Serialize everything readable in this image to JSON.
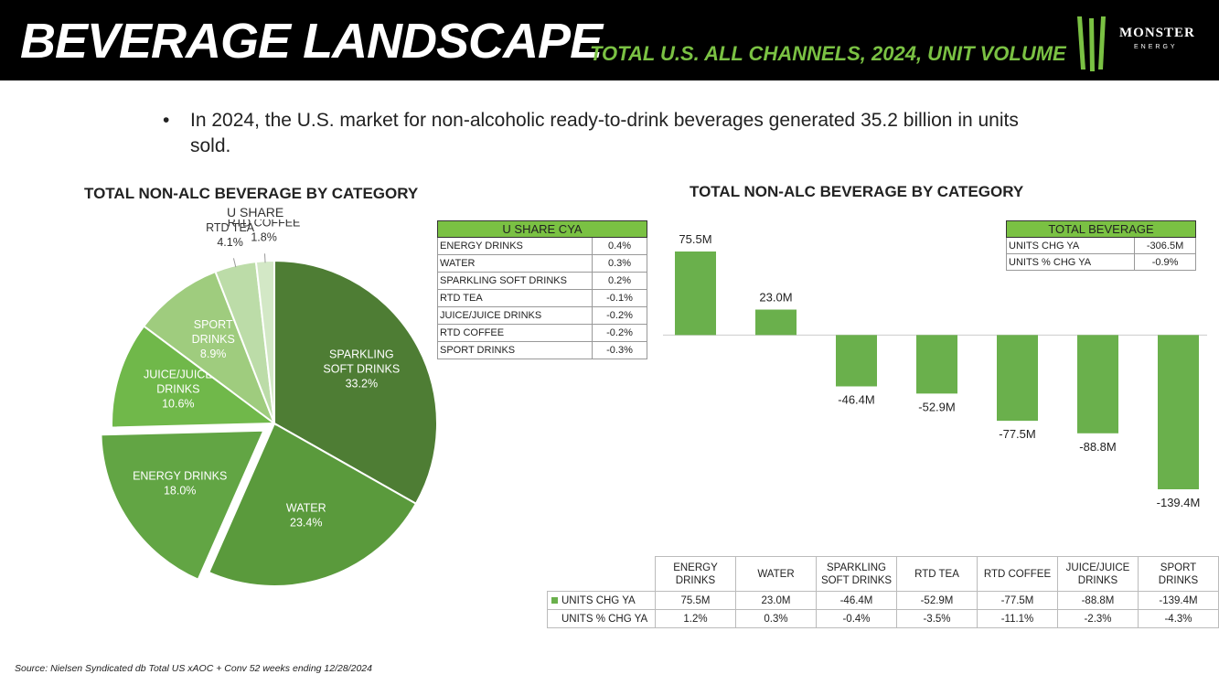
{
  "header": {
    "title": "BEVERAGE LANDSCAPE",
    "subtitle": "TOTAL U.S. ALL CHANNELS, 2024, UNIT VOLUME",
    "logo_text": "MONSTER",
    "logo_sub": "ENERGY"
  },
  "bullet": {
    "symbol": "•",
    "text": "In 2024, the U.S. market for non-alcoholic ready-to-drink beverages generated 35.2 billion in units sold."
  },
  "pie_chart": {
    "title": "TOTAL NON-ALC BEVERAGE BY CATEGORY",
    "subtitle": "U SHARE"
  },
  "bar_chart": {
    "title": "TOTAL NON-ALC BEVERAGE BY CATEGORY"
  },
  "share_table": {
    "header": "U SHARE CYA",
    "rows": [
      {
        "label": "ENERGY DRINKS",
        "value": "0.4%"
      },
      {
        "label": "WATER",
        "value": "0.3%"
      },
      {
        "label": "SPARKLING SOFT DRINKS",
        "value": "0.2%"
      },
      {
        "label": "RTD TEA",
        "value": "-0.1%"
      },
      {
        "label": "JUICE/JUICE DRINKS",
        "value": "-0.2%"
      },
      {
        "label": "RTD COFFEE",
        "value": "-0.2%"
      },
      {
        "label": "SPORT DRINKS",
        "value": "-0.3%"
      }
    ]
  },
  "total_table": {
    "header": "TOTAL BEVERAGE",
    "rows": [
      {
        "label": "UNITS CHG YA",
        "value": "-306.5M"
      },
      {
        "label": "UNITS % CHG YA",
        "value": "-0.9%"
      }
    ]
  },
  "data_table": {
    "columns": [
      "ENERGY DRINKS",
      "WATER",
      "SPARKLING SOFT DRINKS",
      "RTD TEA",
      "RTD COFFEE",
      "JUICE/JUICE DRINKS",
      "SPORT DRINKS"
    ],
    "row1_label": "UNITS CHG YA",
    "row1": [
      "75.5M",
      "23.0M",
      "-46.4M",
      "-52.9M",
      "-77.5M",
      "-88.8M",
      "-139.4M"
    ],
    "row2_label": "UNITS % CHG YA",
    "row2": [
      "1.2%",
      "0.3%",
      "-0.4%",
      "-3.5%",
      "-11.1%",
      "-2.3%",
      "-4.3%"
    ]
  },
  "source": "Source: Nielsen Syndicated db Total US xAOC + Conv 52 weeks ending 12/28/2024",
  "colors": {
    "accent": "#7ac143",
    "bar": "#6ab04c",
    "header_bg": "#000000"
  },
  "chart_data": [
    {
      "type": "pie",
      "title": "TOTAL NON-ALC BEVERAGE BY CATEGORY",
      "subtitle": "U SHARE",
      "categories": [
        "SPARKLING SOFT DRINKS",
        "WATER",
        "ENERGY DRINKS",
        "JUICE/JUICE DRINKS",
        "SPORT DRINKS",
        "RTD TEA",
        "RTD COFFEE"
      ],
      "display_labels": [
        [
          "SPARKLING",
          "SOFT DRINKS"
        ],
        [
          "WATER"
        ],
        [
          "ENERGY DRINKS"
        ],
        [
          "JUICE/JUICE",
          "DRINKS"
        ],
        [
          "SPORT",
          "DRINKS"
        ],
        [
          "RTD TEA"
        ],
        [
          "RTD COFFEE"
        ]
      ],
      "values": [
        33.2,
        23.4,
        18.0,
        10.6,
        8.9,
        4.1,
        1.8
      ],
      "value_labels": [
        "33.2%",
        "23.4%",
        "18.0%",
        "10.6%",
        "8.9%",
        "4.1%",
        "1.8%"
      ],
      "colors": [
        "#4e7d34",
        "#5a9a3c",
        "#62a544",
        "#70b84a",
        "#9fcc7e",
        "#bcdca8",
        "#d3e8c6"
      ],
      "exploded": "ENERGY DRINKS"
    },
    {
      "type": "bar",
      "title": "TOTAL NON-ALC BEVERAGE BY CATEGORY",
      "categories": [
        "ENERGY DRINKS",
        "WATER",
        "SPARKLING SOFT DRINKS",
        "RTD TEA",
        "RTD COFFEE",
        "JUICE/JUICE DRINKS",
        "SPORT DRINKS"
      ],
      "values": [
        75.5,
        23.0,
        -46.4,
        -52.9,
        -77.5,
        -88.8,
        -139.4
      ],
      "value_labels": [
        "75.5M",
        "23.0M",
        "-46.4M",
        "-52.9M",
        "-77.5M",
        "-88.8M",
        "-139.4M"
      ],
      "unit": "M units",
      "ylim": [
        -139.4,
        75.5
      ]
    }
  ]
}
